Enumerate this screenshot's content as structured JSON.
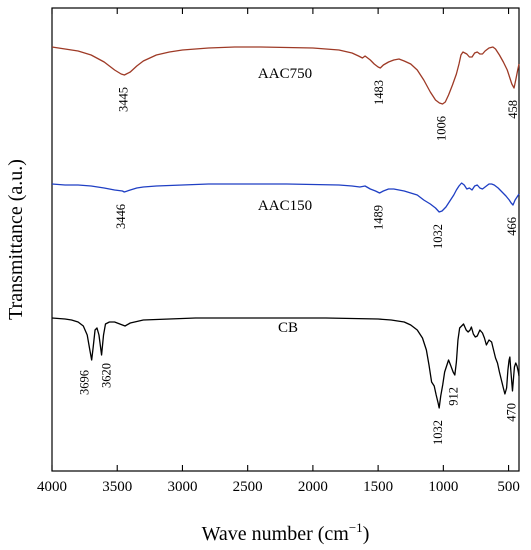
{
  "chart_data": {
    "type": "line",
    "xlabel_text": "Wave number (cm",
    "xlabel_sup": "−1",
    "xlabel_close": ")",
    "ylabel": "Transmittance (a.u.)",
    "xlim": [
      4000,
      420
    ],
    "x_ticks": [
      4000,
      3500,
      3000,
      2500,
      2000,
      1500,
      1000,
      500
    ],
    "y_ticks_shown": false,
    "grid": false,
    "legend": "none",
    "series": [
      {
        "name": "AAC750",
        "color": "#9e3a26",
        "points": [
          [
            4000,
            47
          ],
          [
            3900,
            49
          ],
          [
            3800,
            51
          ],
          [
            3700,
            55
          ],
          [
            3600,
            62
          ],
          [
            3520,
            70
          ],
          [
            3470,
            74
          ],
          [
            3445,
            75
          ],
          [
            3400,
            72
          ],
          [
            3350,
            66
          ],
          [
            3300,
            61
          ],
          [
            3200,
            55
          ],
          [
            3100,
            52
          ],
          [
            3000,
            50
          ],
          [
            2800,
            48
          ],
          [
            2600,
            47
          ],
          [
            2400,
            47
          ],
          [
            2200,
            47.5
          ],
          [
            2000,
            48
          ],
          [
            1800,
            50
          ],
          [
            1700,
            53
          ],
          [
            1650,
            56
          ],
          [
            1620,
            58
          ],
          [
            1600,
            56
          ],
          [
            1560,
            60
          ],
          [
            1530,
            64
          ],
          [
            1500,
            67
          ],
          [
            1483,
            68
          ],
          [
            1460,
            65
          ],
          [
            1420,
            62
          ],
          [
            1380,
            60
          ],
          [
            1340,
            59
          ],
          [
            1300,
            61
          ],
          [
            1250,
            64
          ],
          [
            1200,
            70
          ],
          [
            1150,
            80
          ],
          [
            1100,
            92
          ],
          [
            1060,
            100
          ],
          [
            1030,
            103
          ],
          [
            1006,
            104
          ],
          [
            985,
            102
          ],
          [
            960,
            95
          ],
          [
            930,
            85
          ],
          [
            900,
            74
          ],
          [
            880,
            64
          ],
          [
            865,
            55
          ],
          [
            850,
            52
          ],
          [
            820,
            54
          ],
          [
            800,
            57
          ],
          [
            780,
            57
          ],
          [
            760,
            53
          ],
          [
            740,
            52
          ],
          [
            720,
            54
          ],
          [
            700,
            54
          ],
          [
            680,
            51
          ],
          [
            650,
            48
          ],
          [
            620,
            47
          ],
          [
            600,
            49
          ],
          [
            570,
            55
          ],
          [
            540,
            62
          ],
          [
            510,
            70
          ],
          [
            490,
            78
          ],
          [
            475,
            84
          ],
          [
            458,
            88
          ],
          [
            445,
            80
          ],
          [
            430,
            70
          ],
          [
            420,
            64
          ]
        ],
        "peaks": [
          {
            "x": 3445,
            "label": "3445"
          },
          {
            "x": 1483,
            "label": "1483"
          },
          {
            "x": 1006,
            "label": "1006"
          },
          {
            "x": 458,
            "label": "458"
          }
        ]
      },
      {
        "name": "AAC150",
        "color": "#1f3fc4",
        "points": [
          [
            4000,
            184
          ],
          [
            3900,
            185
          ],
          [
            3800,
            185
          ],
          [
            3700,
            186
          ],
          [
            3600,
            188
          ],
          [
            3520,
            190
          ],
          [
            3460,
            191
          ],
          [
            3446,
            192
          ],
          [
            3400,
            190
          ],
          [
            3350,
            188
          ],
          [
            3300,
            187
          ],
          [
            3200,
            186
          ],
          [
            3000,
            185
          ],
          [
            2800,
            184
          ],
          [
            2500,
            184
          ],
          [
            2200,
            184
          ],
          [
            2000,
            184.5
          ],
          [
            1800,
            185
          ],
          [
            1700,
            186
          ],
          [
            1640,
            187
          ],
          [
            1600,
            186
          ],
          [
            1560,
            189
          ],
          [
            1520,
            191
          ],
          [
            1489,
            193
          ],
          [
            1460,
            191
          ],
          [
            1420,
            189
          ],
          [
            1380,
            189
          ],
          [
            1340,
            190
          ],
          [
            1300,
            191
          ],
          [
            1250,
            193
          ],
          [
            1200,
            195
          ],
          [
            1150,
            200
          ],
          [
            1100,
            204
          ],
          [
            1060,
            208
          ],
          [
            1032,
            212
          ],
          [
            1010,
            211
          ],
          [
            980,
            207
          ],
          [
            950,
            201
          ],
          [
            920,
            195
          ],
          [
            900,
            190
          ],
          [
            880,
            186
          ],
          [
            860,
            183
          ],
          [
            840,
            185
          ],
          [
            820,
            189
          ],
          [
            800,
            188
          ],
          [
            780,
            190
          ],
          [
            760,
            186
          ],
          [
            740,
            185
          ],
          [
            720,
            188
          ],
          [
            700,
            189
          ],
          [
            680,
            187
          ],
          [
            650,
            184
          ],
          [
            630,
            184
          ],
          [
            610,
            185
          ],
          [
            580,
            188
          ],
          [
            550,
            192
          ],
          [
            520,
            196
          ],
          [
            495,
            200
          ],
          [
            480,
            203
          ],
          [
            466,
            205
          ],
          [
            450,
            200
          ],
          [
            430,
            196
          ],
          [
            420,
            194
          ]
        ],
        "peaks": [
          {
            "x": 3446,
            "label": "3446"
          },
          {
            "x": 1489,
            "label": "1489"
          },
          {
            "x": 1032,
            "label": "1032"
          },
          {
            "x": 466,
            "label": "466"
          }
        ]
      },
      {
        "name": "CB",
        "color": "#000000",
        "points": [
          [
            4000,
            318
          ],
          [
            3900,
            319
          ],
          [
            3850,
            320
          ],
          [
            3800,
            322
          ],
          [
            3760,
            326
          ],
          [
            3730,
            335
          ],
          [
            3710,
            350
          ],
          [
            3696,
            360
          ],
          [
            3685,
            348
          ],
          [
            3670,
            330
          ],
          [
            3655,
            328
          ],
          [
            3640,
            335
          ],
          [
            3620,
            355
          ],
          [
            3605,
            335
          ],
          [
            3590,
            324
          ],
          [
            3560,
            322
          ],
          [
            3520,
            322
          ],
          [
            3480,
            324
          ],
          [
            3440,
            326
          ],
          [
            3400,
            323
          ],
          [
            3300,
            320
          ],
          [
            3100,
            319
          ],
          [
            2900,
            318
          ],
          [
            2700,
            318
          ],
          [
            2500,
            318
          ],
          [
            2300,
            318
          ],
          [
            2100,
            318
          ],
          [
            1900,
            318
          ],
          [
            1700,
            318.5
          ],
          [
            1500,
            319
          ],
          [
            1400,
            320
          ],
          [
            1300,
            322
          ],
          [
            1250,
            325
          ],
          [
            1200,
            330
          ],
          [
            1160,
            338
          ],
          [
            1130,
            350
          ],
          [
            1110,
            365
          ],
          [
            1090,
            382
          ],
          [
            1070,
            386
          ],
          [
            1055,
            395
          ],
          [
            1040,
            403
          ],
          [
            1032,
            408
          ],
          [
            1020,
            396
          ],
          [
            1005,
            385
          ],
          [
            990,
            372
          ],
          [
            975,
            366
          ],
          [
            960,
            360
          ],
          [
            945,
            365
          ],
          [
            925,
            372
          ],
          [
            912,
            375
          ],
          [
            900,
            362
          ],
          [
            888,
            340
          ],
          [
            875,
            328
          ],
          [
            860,
            326
          ],
          [
            845,
            324
          ],
          [
            825,
            330
          ],
          [
            810,
            332
          ],
          [
            795,
            330
          ],
          [
            785,
            327
          ],
          [
            770,
            334
          ],
          [
            755,
            337
          ],
          [
            740,
            336
          ],
          [
            720,
            330
          ],
          [
            700,
            333
          ],
          [
            685,
            338
          ],
          [
            670,
            345
          ],
          [
            650,
            340
          ],
          [
            630,
            342
          ],
          [
            615,
            350
          ],
          [
            600,
            358
          ],
          [
            585,
            363
          ],
          [
            570,
            372
          ],
          [
            555,
            380
          ],
          [
            540,
            388
          ],
          [
            528,
            394
          ],
          [
            515,
            388
          ],
          [
            505,
            370
          ],
          [
            496,
            360
          ],
          [
            490,
            357
          ],
          [
            483,
            370
          ],
          [
            475,
            383
          ],
          [
            470,
            391
          ],
          [
            462,
            378
          ],
          [
            455,
            367
          ],
          [
            445,
            363
          ],
          [
            435,
            366
          ],
          [
            425,
            372
          ],
          [
            420,
            376
          ]
        ],
        "peaks": [
          {
            "x": 3696,
            "label": "3696"
          },
          {
            "x": 3620,
            "label": "3620"
          },
          {
            "x": 1032,
            "label": "1032"
          },
          {
            "x": 912,
            "label": "912"
          },
          {
            "x": 470,
            "label": "470"
          }
        ]
      }
    ]
  }
}
